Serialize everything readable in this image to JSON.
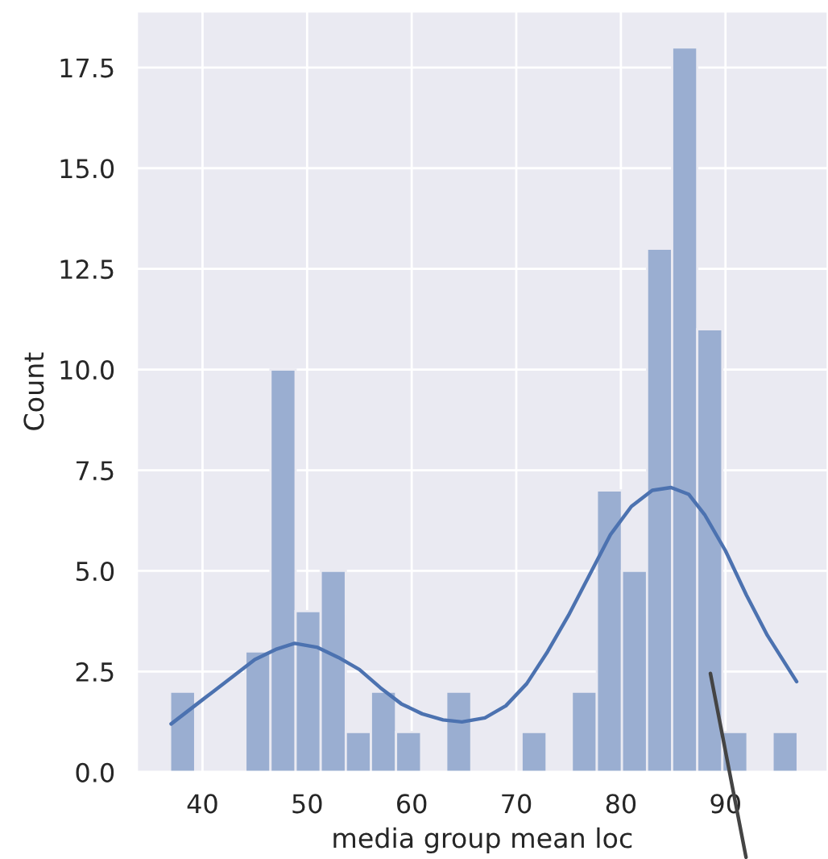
{
  "chart_data": {
    "type": "histogram",
    "xlabel": "media group mean loc",
    "ylabel": "Count",
    "bins": [
      36.9,
      39.3,
      41.7,
      44.1,
      46.5,
      48.9,
      51.3,
      53.7,
      56.1,
      58.5,
      60.9,
      63.3,
      65.7,
      68.1,
      70.5,
      72.9,
      75.3,
      77.7,
      80.1,
      82.5,
      84.9,
      87.3,
      89.7,
      92.1,
      94.5,
      96.9
    ],
    "values": [
      2,
      0,
      0,
      3,
      10,
      4,
      5,
      1,
      2,
      1,
      0,
      2,
      0,
      0,
      1,
      0,
      2,
      7,
      5,
      13,
      18,
      11,
      1,
      0,
      1
    ],
    "color": "#9aaed1",
    "series": [
      {
        "type": "line",
        "color": "#4c72b0",
        "x": [
          37,
          39,
          41,
          43,
          45,
          47,
          48.8,
          51,
          53,
          55,
          57,
          59,
          61,
          63,
          64.8,
          67,
          69,
          71,
          73,
          75,
          77,
          79,
          81,
          83,
          84.8,
          86.5,
          88,
          90,
          92,
          94,
          96.8
        ],
        "values": [
          1.2,
          1.6,
          2.0,
          2.4,
          2.8,
          3.05,
          3.2,
          3.1,
          2.85,
          2.55,
          2.1,
          1.7,
          1.45,
          1.3,
          1.25,
          1.35,
          1.65,
          2.2,
          3.0,
          3.9,
          4.9,
          5.9,
          6.6,
          7.0,
          7.07,
          6.9,
          6.4,
          5.5,
          4.4,
          3.4,
          2.25
        ]
      }
    ],
    "xlim": [
      33.7,
      99.8
    ],
    "ylim": [
      0,
      18.9
    ],
    "xticks": [
      40,
      50,
      60,
      70,
      80,
      90
    ],
    "yticks": [
      {
        "value": 0,
        "label": "0.0"
      },
      {
        "value": 2.5,
        "label": "2.5"
      },
      {
        "value": 5,
        "label": "5.0"
      },
      {
        "value": 7.5,
        "label": "7.5"
      },
      {
        "value": 10,
        "label": "10.0"
      },
      {
        "value": 12.5,
        "label": "12.5"
      },
      {
        "value": 15,
        "label": "15.0"
      },
      {
        "value": 17.5,
        "label": "17.5"
      }
    ],
    "grid": true
  }
}
